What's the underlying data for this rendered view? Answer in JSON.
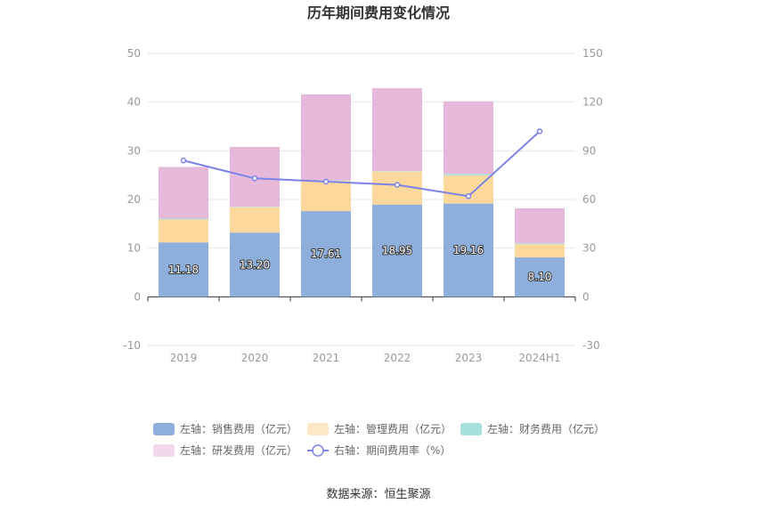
{
  "title": "历年期间费用变化情况",
  "source": "数据来源：恒生聚源",
  "chart_data": {
    "type": "bar",
    "categories": [
      "2019",
      "2020",
      "2021",
      "2022",
      "2023",
      "2024H1"
    ],
    "left_axis": {
      "min": -10,
      "max": 50,
      "ticks": [
        "-10",
        "0",
        "10",
        "20",
        "30",
        "40",
        "50"
      ]
    },
    "right_axis": {
      "min": -30,
      "max": 150,
      "ticks": [
        "-30",
        "0",
        "30",
        "60",
        "90",
        "120",
        "150"
      ]
    },
    "series": [
      {
        "name": "左轴：销售费用（亿元）",
        "axis": "left",
        "type": "bar",
        "color": "#8eaedc",
        "values": [
          11.18,
          13.2,
          17.61,
          18.95,
          19.16,
          8.1
        ],
        "labels": [
          "11.18",
          "13.20",
          "17.61",
          "18.95",
          "19.16",
          "8.10"
        ]
      },
      {
        "name": "左轴：管理费用（亿元）",
        "axis": "left",
        "type": "bar",
        "color": "#fdd89c",
        "values": [
          4.7,
          5.2,
          6.2,
          6.8,
          5.8,
          2.7
        ]
      },
      {
        "name": "左轴：财务费用（亿元）",
        "axis": "left",
        "type": "bar",
        "color": "#a8e0de",
        "values": [
          0.2,
          0.1,
          0.1,
          0.1,
          0.3,
          0.2
        ]
      },
      {
        "name": "左轴：研发费用（亿元）",
        "axis": "left",
        "type": "bar",
        "color": "#e6b9da",
        "values": [
          10.6,
          12.3,
          17.7,
          17.0,
          14.9,
          7.2
        ]
      },
      {
        "name": "右轴：期间费用率（%）",
        "axis": "right",
        "type": "line",
        "color": "#7b84e6",
        "values": [
          84,
          73,
          71,
          69,
          62,
          102
        ]
      }
    ],
    "legend_position": "bottom",
    "grid": true
  }
}
